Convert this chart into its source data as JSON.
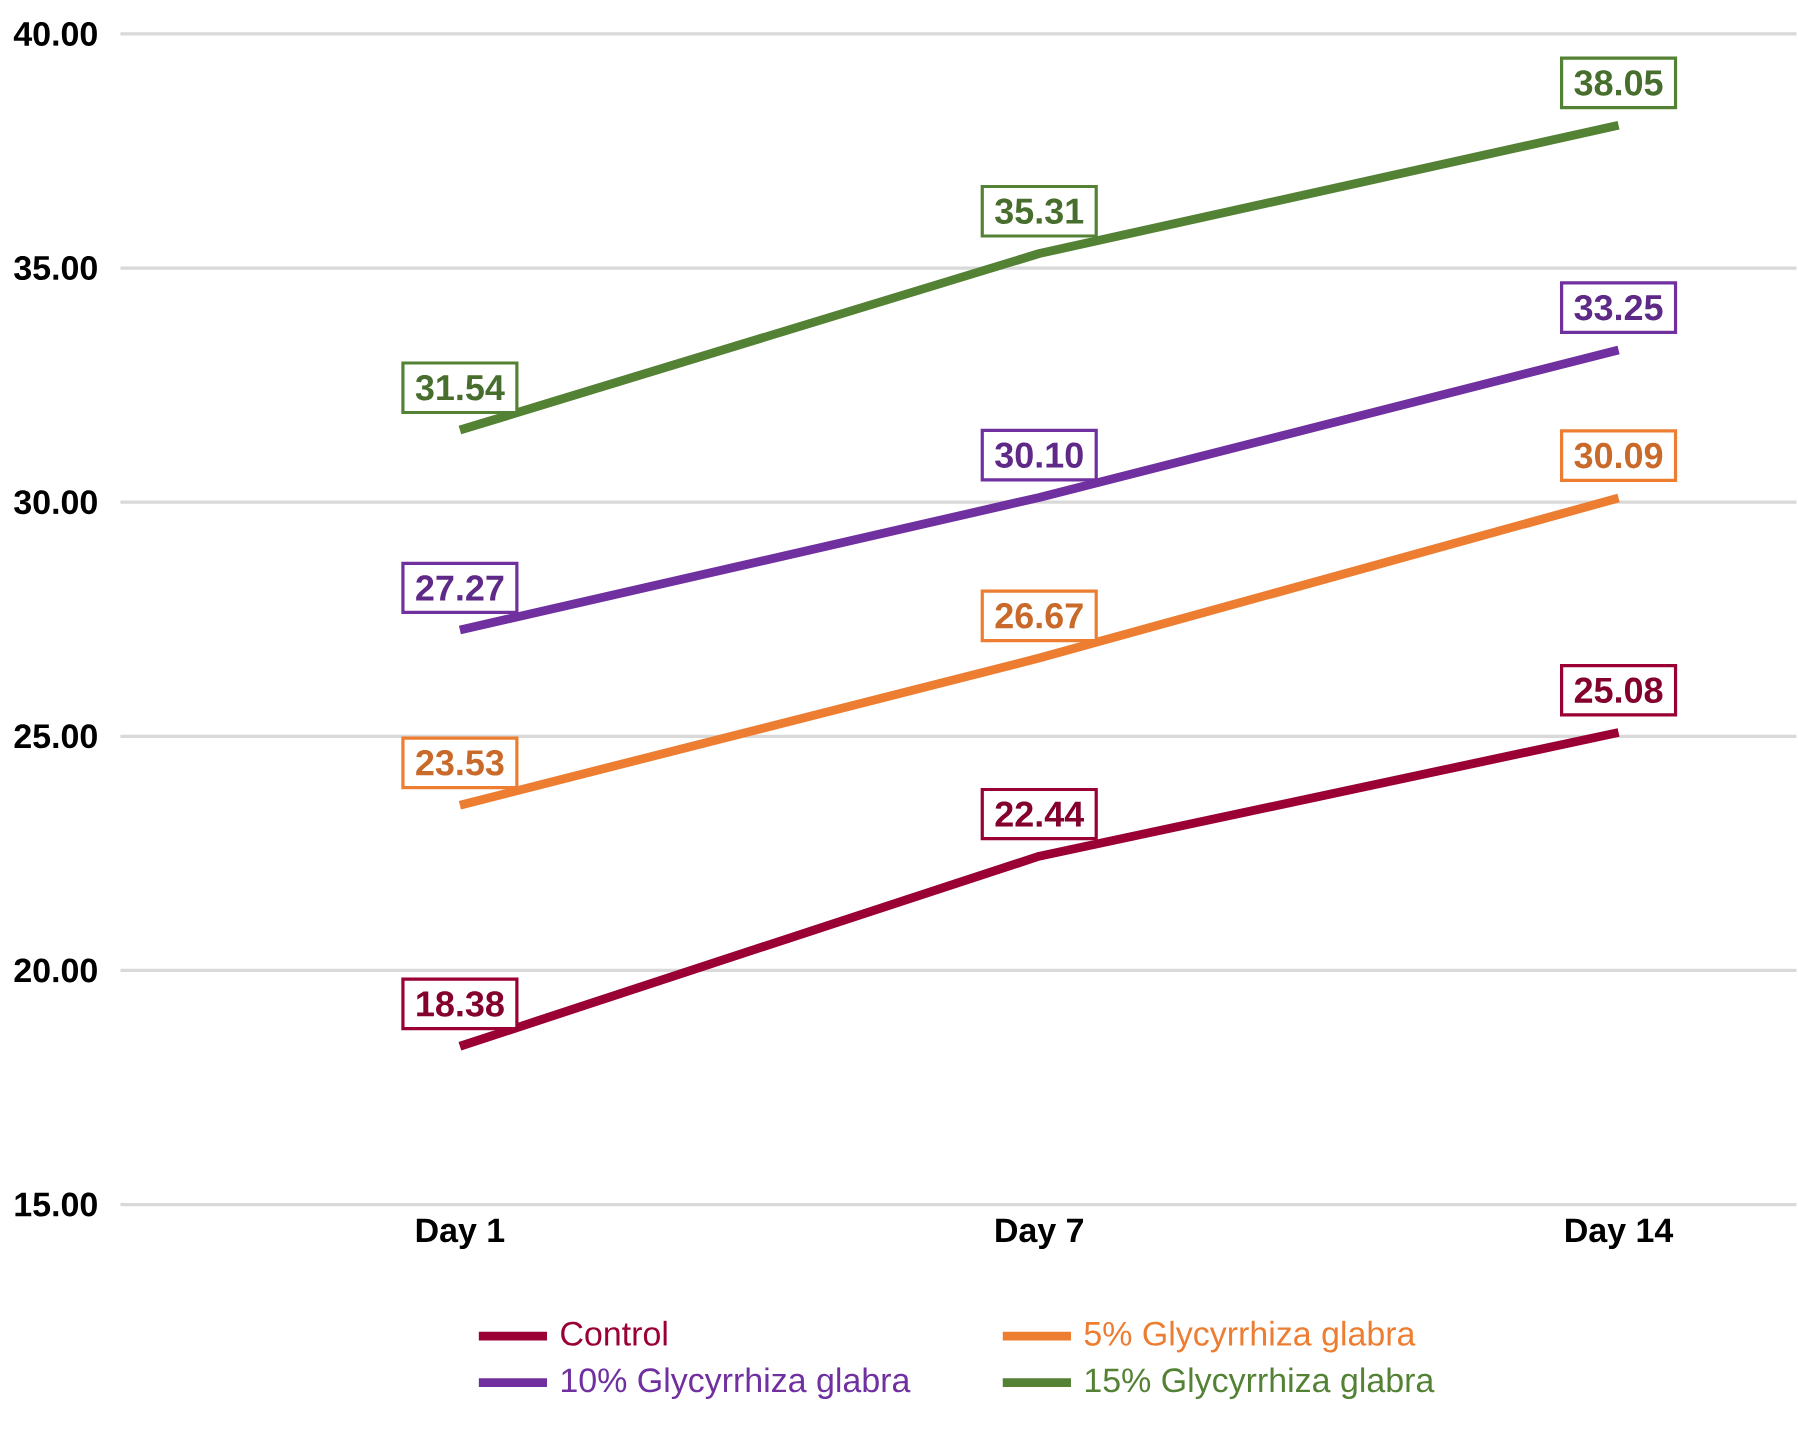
{
  "chart_data": {
    "type": "line",
    "categories": [
      "Day 1",
      "Day 7",
      "Day 14"
    ],
    "series": [
      {
        "name": "Control",
        "color": "#9b0035",
        "values": [
          18.38,
          22.44,
          25.08
        ],
        "value_labels": [
          "18.38",
          "22.44",
          "25.08"
        ]
      },
      {
        "name": "5% Glycyrrhiza glabra",
        "color": "#ed7d31",
        "values": [
          23.53,
          26.67,
          30.09
        ],
        "value_labels": [
          "23.53",
          "26.67",
          "30.09"
        ]
      },
      {
        "name": "10% Glycyrrhiza glabra",
        "color": "#7030a0",
        "values": [
          27.27,
          30.1,
          33.25
        ],
        "value_labels": [
          "27.27",
          "30.10",
          "33.25"
        ]
      },
      {
        "name": "15% Glycyrrhiza glabra",
        "color": "#548235",
        "values": [
          31.54,
          35.31,
          38.05
        ],
        "value_labels": [
          "31.54",
          "35.31",
          "38.05"
        ]
      }
    ],
    "ylim": [
      15,
      40
    ],
    "yticks": [
      {
        "value": 15,
        "label": "15.00"
      },
      {
        "value": 20,
        "label": "20.00"
      },
      {
        "value": 25,
        "label": "25.00"
      },
      {
        "value": 30,
        "label": "30.00"
      },
      {
        "value": 35,
        "label": "35.00"
      },
      {
        "value": 40,
        "label": "40.00"
      }
    ],
    "grid": "y",
    "legend": "bottom",
    "marker": "none",
    "line_style": "solid"
  }
}
